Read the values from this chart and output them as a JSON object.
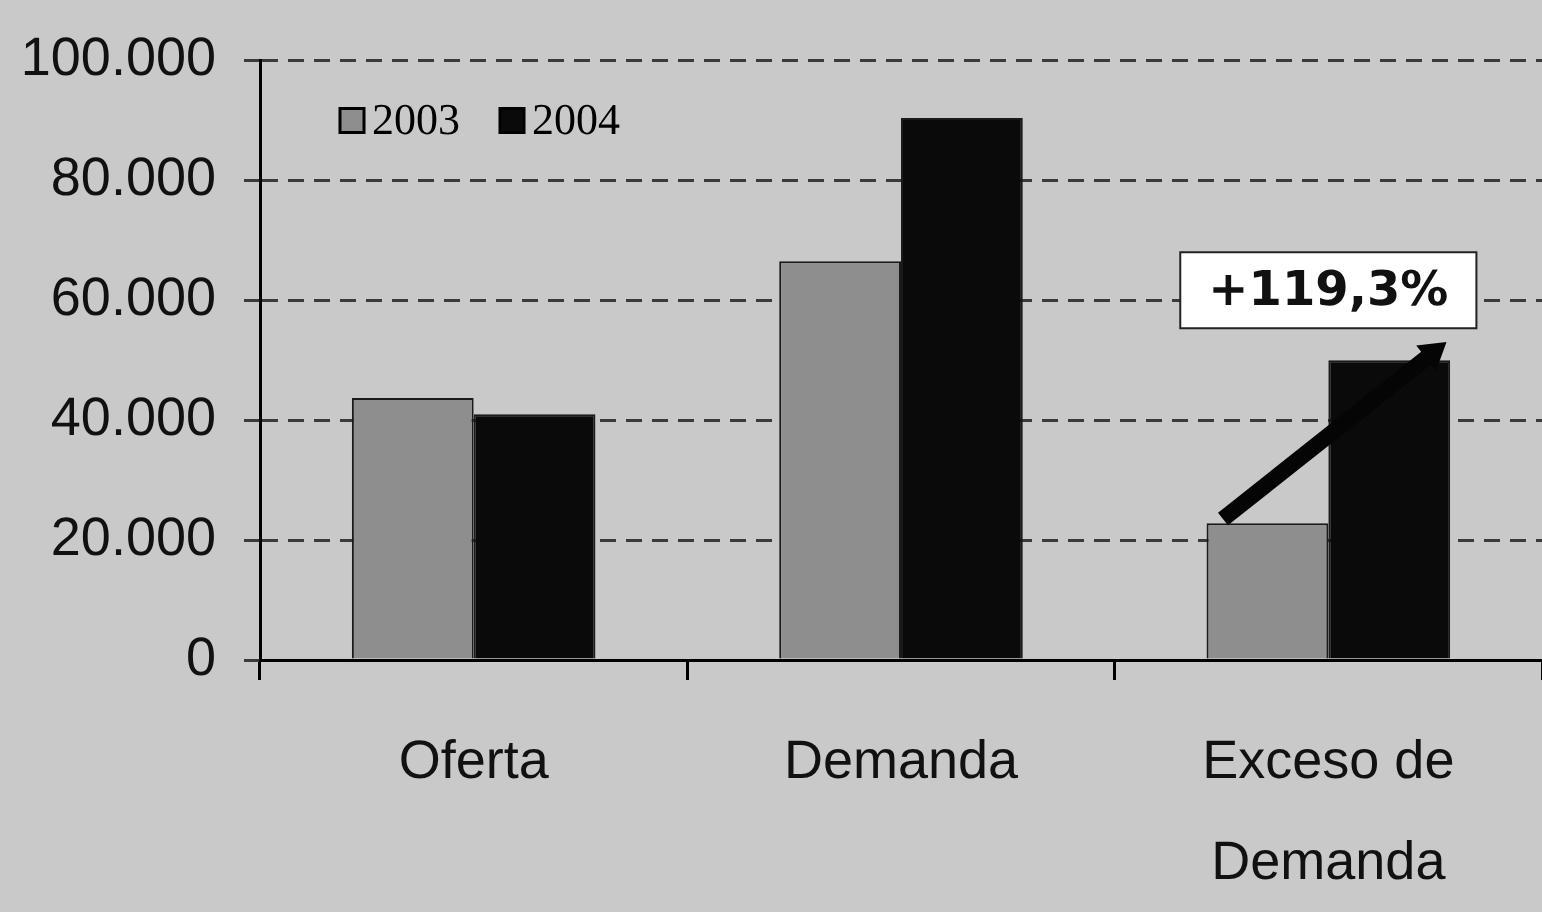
{
  "chart_data": {
    "type": "bar",
    "categories": [
      "Oferta",
      "Demanda",
      "Exceso de Demanda"
    ],
    "series": [
      {
        "name": "2003",
        "color": "#8e8e8e",
        "values": [
          43700,
          66500,
          22800
        ]
      },
      {
        "name": "2004",
        "color": "#0a0a0a",
        "values": [
          41000,
          90400,
          50000
        ]
      }
    ],
    "ylim": [
      0,
      100000
    ],
    "yticks": [
      0,
      {
        "value": 20000,
        "label": "20.000"
      },
      {
        "value": 40000,
        "label": "40.000"
      },
      {
        "value": 60000,
        "label": "60.000"
      },
      {
        "value": 80000,
        "label": "80.000"
      },
      {
        "value": 100000,
        "label": "100.000"
      }
    ],
    "grid": "y",
    "legend": "top left",
    "annotations": [
      {
        "text": "+119,3%",
        "x": "Exceso de Demanda",
        "y": 50000
      }
    ]
  }
}
